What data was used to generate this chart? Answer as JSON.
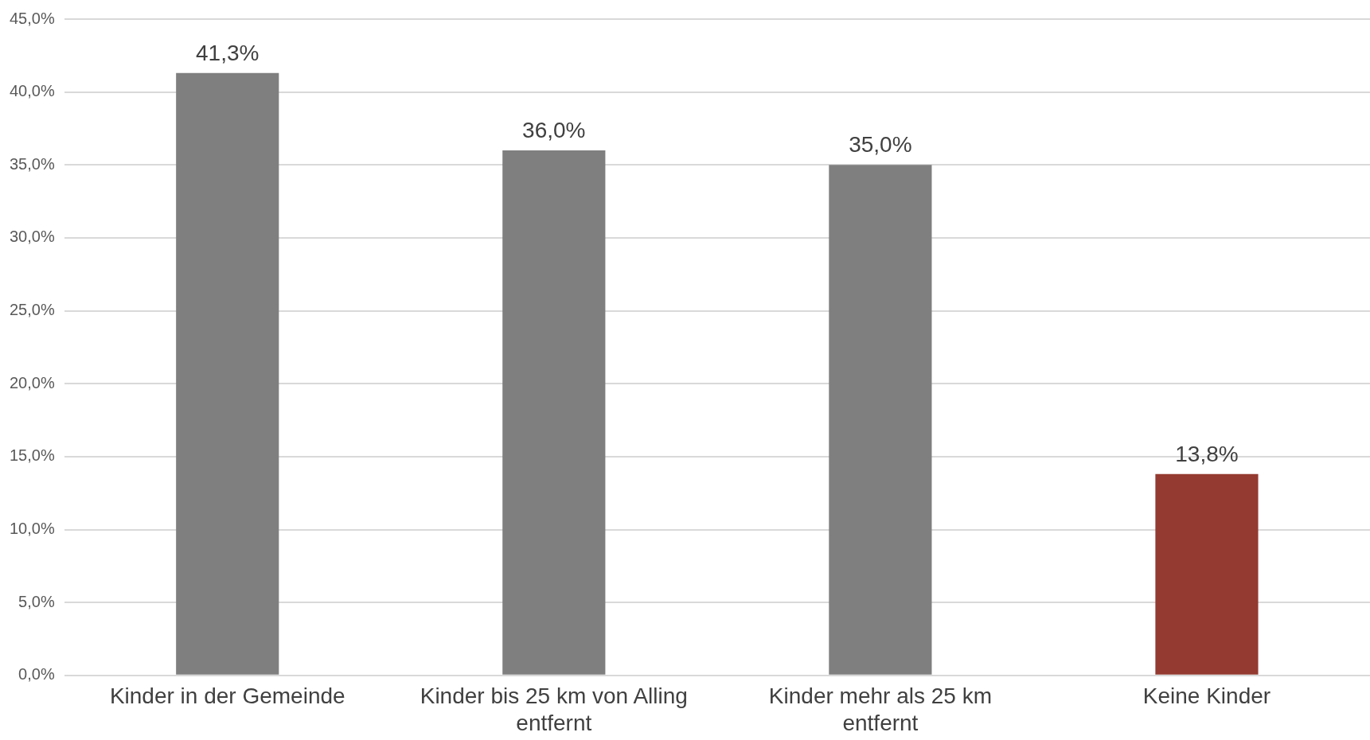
{
  "chart_data": {
    "type": "bar",
    "categories": [
      "Kinder in der Gemeinde",
      "Kinder bis 25 km von Alling entfernt",
      "Kinder mehr als 25 km entfernt",
      "Keine Kinder"
    ],
    "values": [
      41.3,
      36.0,
      35.0,
      13.8
    ],
    "colors": [
      "#7f7f7f",
      "#7f7f7f",
      "#7f7f7f",
      "#943a30"
    ],
    "value_labels": [
      "41,3%",
      "36,0%",
      "35,0%",
      "13,8%"
    ],
    "ylim": [
      0,
      45
    ],
    "yticks": [
      {
        "value": 0,
        "label": "0,0%"
      },
      {
        "value": 5,
        "label": "5,0%"
      },
      {
        "value": 10,
        "label": "10,0%"
      },
      {
        "value": 15,
        "label": "15,0%"
      },
      {
        "value": 20,
        "label": "20,0%"
      },
      {
        "value": 25,
        "label": "25,0%"
      },
      {
        "value": 30,
        "label": "30,0%"
      },
      {
        "value": 35,
        "label": "35,0%"
      },
      {
        "value": 40,
        "label": "40,0%"
      },
      {
        "value": 45,
        "label": "45,0%"
      }
    ],
    "grid": "y",
    "legend": false
  }
}
